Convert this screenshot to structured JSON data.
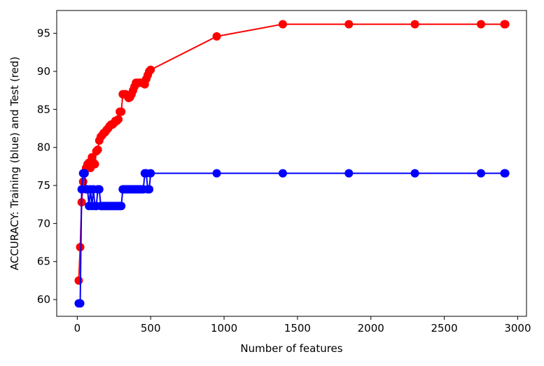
{
  "chart_data": {
    "type": "line",
    "title": "",
    "xlabel": "Number of features",
    "ylabel": "ACCURACY: Training (blue) and Test (red)",
    "xlim": [
      -140,
      3060
    ],
    "ylim": [
      57.8,
      98.0
    ],
    "xticks": [
      0,
      500,
      1000,
      1500,
      2000,
      2500,
      3000
    ],
    "yticks": [
      60,
      65,
      70,
      75,
      80,
      85,
      90,
      95
    ],
    "grid": false,
    "legend": "none",
    "series": [
      {
        "color": "#ff0000",
        "x": [
          10,
          20,
          30,
          40,
          50,
          60,
          70,
          80,
          90,
          100,
          110,
          120,
          130,
          140,
          150,
          160,
          170,
          180,
          190,
          200,
          210,
          220,
          230,
          240,
          250,
          260,
          270,
          280,
          290,
          300,
          310,
          320,
          330,
          340,
          350,
          360,
          370,
          380,
          390,
          400,
          410,
          420,
          430,
          440,
          450,
          460,
          470,
          480,
          490,
          500,
          950,
          1400,
          1850,
          2300,
          2750,
          2910,
          2915
        ],
        "y": [
          62.5,
          66.9,
          72.8,
          75.5,
          76.6,
          77.3,
          77.8,
          78.0,
          77.3,
          78.7,
          78.0,
          77.8,
          79.5,
          79.7,
          80.9,
          81.4,
          81.6,
          81.9,
          82.0,
          82.3,
          82.5,
          82.8,
          83.0,
          83.0,
          83.2,
          83.5,
          83.5,
          83.7,
          84.7,
          84.7,
          87.0,
          87.0,
          87.0,
          86.8,
          86.5,
          86.6,
          87.0,
          87.5,
          88.0,
          88.5,
          88.5,
          88.5,
          88.5,
          88.5,
          88.5,
          88.3,
          89.0,
          89.5,
          90.0,
          90.2,
          94.6,
          96.2,
          96.2,
          96.2,
          96.2,
          96.2,
          96.2
        ]
      },
      {
        "color": "#0000ff",
        "x": [
          10,
          20,
          30,
          40,
          50,
          60,
          70,
          80,
          90,
          100,
          110,
          120,
          130,
          140,
          150,
          160,
          170,
          180,
          190,
          200,
          210,
          220,
          230,
          240,
          250,
          260,
          270,
          280,
          290,
          300,
          310,
          320,
          330,
          340,
          350,
          360,
          370,
          380,
          390,
          400,
          410,
          420,
          430,
          440,
          450,
          460,
          470,
          480,
          490,
          500,
          950,
          1400,
          1850,
          2300,
          2750,
          2910,
          2915
        ],
        "y": [
          59.5,
          59.5,
          74.5,
          76.6,
          76.6,
          74.5,
          74.5,
          72.3,
          74.5,
          72.3,
          74.5,
          72.3,
          72.3,
          74.5,
          74.5,
          72.3,
          72.3,
          72.3,
          72.3,
          72.3,
          72.3,
          72.3,
          72.3,
          72.3,
          72.3,
          72.3,
          72.3,
          72.3,
          72.3,
          72.3,
          74.5,
          74.5,
          74.5,
          74.5,
          74.5,
          74.5,
          74.5,
          74.5,
          74.5,
          74.5,
          74.5,
          74.5,
          74.5,
          74.5,
          74.5,
          76.6,
          76.6,
          74.5,
          74.5,
          76.6,
          76.6,
          76.6,
          76.6,
          76.6,
          76.6,
          76.6,
          76.6
        ]
      }
    ]
  }
}
